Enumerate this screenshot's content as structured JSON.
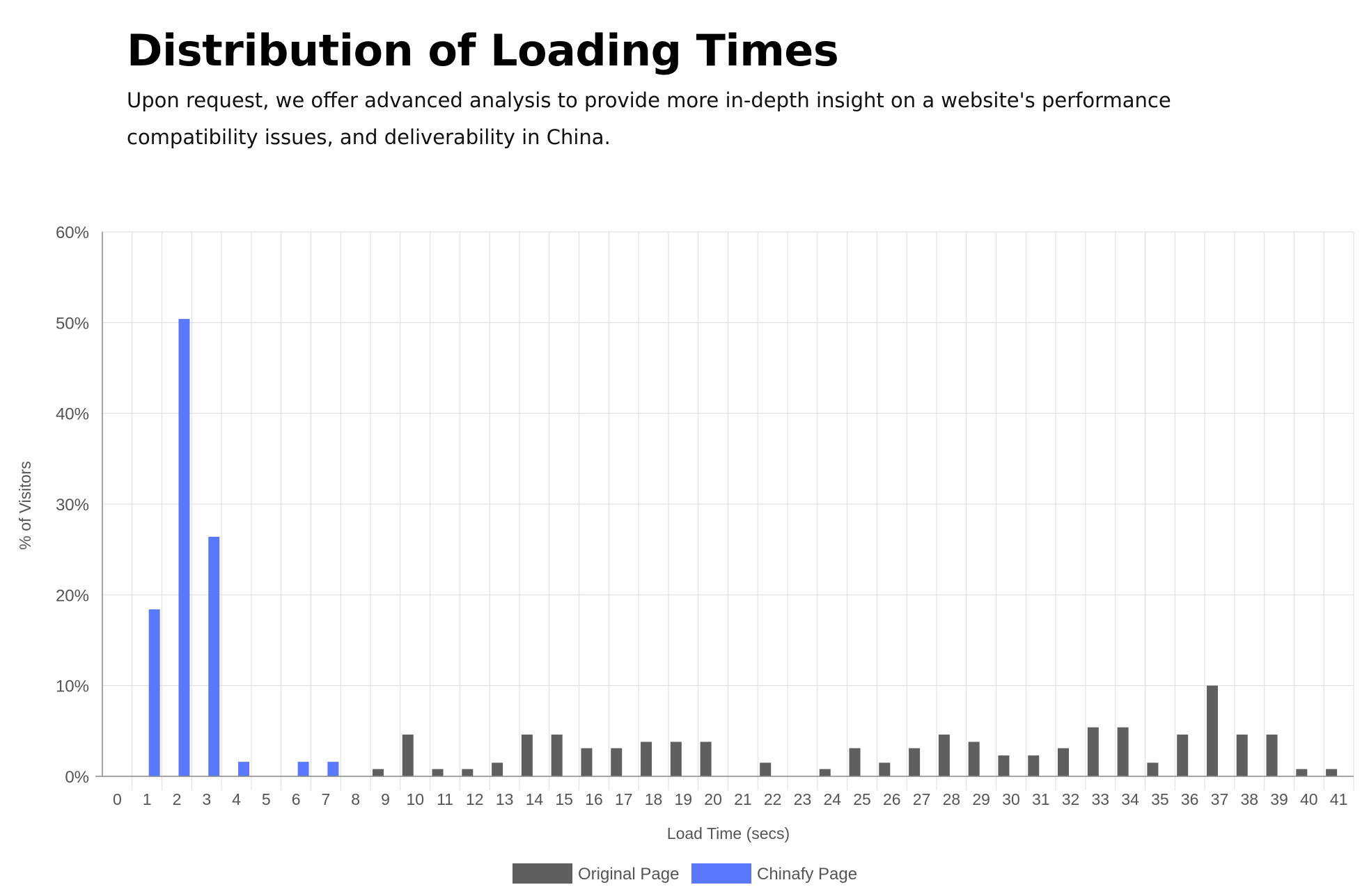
{
  "header": {
    "title": "Distribution of Loading Times",
    "subtitle": "Upon request, we offer advanced analysis to provide more in-depth insight on a website's performance compatibility issues, and deliverability in China."
  },
  "colors": {
    "original": "#5f5f5f",
    "chinafy": "#5a78fb",
    "grid": "#dddddd",
    "axis": "#888888"
  },
  "chart_data": {
    "type": "bar",
    "xlabel": "Load Time (secs)",
    "ylabel": "% of Visitors",
    "ylim": [
      0,
      60
    ],
    "y_ticks": [
      0,
      10,
      20,
      30,
      40,
      50,
      60
    ],
    "y_tick_suffix": "%",
    "grid": true,
    "legend_position": "bottom-center",
    "categories": [
      "0",
      "1",
      "2",
      "3",
      "4",
      "5",
      "6",
      "7",
      "8",
      "9",
      "10",
      "11",
      "12",
      "13",
      "14",
      "15",
      "16",
      "17",
      "18",
      "19",
      "20",
      "21",
      "22",
      "23",
      "24",
      "25",
      "26",
      "27",
      "28",
      "29",
      "30",
      "31",
      "32",
      "33",
      "34",
      "35",
      "36",
      "37",
      "38",
      "39",
      "40",
      "41"
    ],
    "series": [
      {
        "name": "Original Page",
        "color": "#5f5f5f",
        "values": [
          0,
          0,
          0,
          0,
          0,
          0,
          0,
          0,
          0,
          0.8,
          4.6,
          0.8,
          0.8,
          1.5,
          4.6,
          4.6,
          3.1,
          3.1,
          3.8,
          3.8,
          3.8,
          0,
          1.5,
          0,
          0.8,
          3.1,
          1.5,
          3.1,
          4.6,
          3.8,
          2.3,
          2.3,
          3.1,
          5.4,
          5.4,
          1.5,
          4.6,
          10.0,
          4.6,
          4.6,
          0.8,
          0.8
        ]
      },
      {
        "name": "Chinafy Page",
        "color": "#5a78fb",
        "values": [
          0,
          18.4,
          50.4,
          26.4,
          1.6,
          0,
          1.6,
          1.6,
          0,
          0,
          0,
          0,
          0,
          0,
          0,
          0,
          0,
          0,
          0,
          0,
          0,
          0,
          0,
          0,
          0,
          0,
          0,
          0,
          0,
          0,
          0,
          0,
          0,
          0,
          0,
          0,
          0,
          0,
          0,
          0,
          0,
          0
        ]
      }
    ]
  }
}
